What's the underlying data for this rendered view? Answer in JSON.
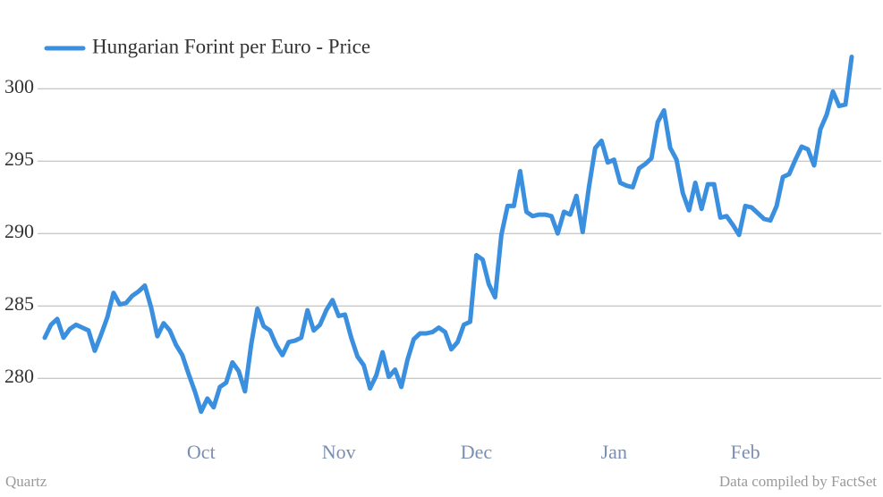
{
  "chart_data": {
    "type": "line",
    "footer_left": "Quartz",
    "footer_right": "Data compiled by FactSet",
    "legend": "top-left",
    "grid": true,
    "categories": [
      null,
      null,
      null,
      null,
      null,
      null,
      null,
      null,
      null,
      null,
      null,
      null,
      null,
      null,
      null,
      null,
      null,
      null,
      null,
      null,
      null,
      null,
      null,
      null,
      null,
      "Oct",
      null,
      null,
      null,
      null,
      null,
      null,
      null,
      null,
      null,
      null,
      null,
      null,
      null,
      null,
      null,
      null,
      null,
      null,
      null,
      null,
      null,
      "Nov",
      null,
      null,
      null,
      null,
      null,
      null,
      null,
      null,
      null,
      null,
      null,
      null,
      null,
      null,
      null,
      null,
      null,
      null,
      null,
      null,
      null,
      "Dec",
      null,
      null,
      null,
      null,
      null,
      null,
      null,
      null,
      null,
      null,
      null,
      null,
      null,
      null,
      null,
      null,
      null,
      null,
      null,
      null,
      null,
      "Jan",
      null,
      null,
      null,
      null,
      null,
      null,
      null,
      null,
      null,
      null,
      null,
      null,
      null,
      null,
      null,
      null,
      null,
      null,
      null,
      null,
      "Feb",
      null,
      null,
      null,
      null,
      null,
      null,
      null,
      null,
      null,
      null,
      null,
      null,
      null,
      null,
      null,
      null,
      null
    ],
    "series": [
      {
        "name": "Hungarian Forint per Euro - Price",
        "color": "#3a8fdf",
        "values": [
          282.8,
          283.7,
          284.1,
          282.8,
          283.4,
          283.7,
          283.5,
          283.3,
          281.9,
          283.0,
          284.2,
          285.9,
          285.1,
          285.2,
          285.7,
          286.0,
          286.4,
          284.9,
          282.9,
          283.8,
          283.3,
          282.3,
          281.6,
          280.3,
          279.1,
          277.7,
          278.6,
          278.0,
          279.4,
          279.7,
          281.1,
          280.5,
          279.1,
          282.3,
          284.8,
          283.6,
          283.3,
          282.3,
          281.6,
          282.5,
          282.6,
          282.8,
          284.7,
          283.3,
          283.7,
          284.7,
          285.4,
          284.3,
          284.4,
          282.8,
          281.5,
          280.9,
          279.3,
          280.2,
          281.8,
          280.1,
          280.6,
          279.4,
          281.3,
          282.7,
          283.1,
          283.1,
          283.2,
          283.5,
          283.2,
          282.0,
          282.5,
          283.7,
          283.9,
          288.5,
          288.2,
          286.5,
          285.6,
          289.9,
          291.9,
          291.9,
          294.3,
          291.5,
          291.2,
          291.3,
          291.3,
          291.2,
          290.0,
          291.5,
          291.3,
          292.6,
          290.1,
          293.2,
          295.9,
          296.4,
          294.9,
          295.1,
          293.5,
          293.3,
          293.2,
          294.5,
          294.8,
          295.2,
          297.7,
          298.5,
          295.9,
          295.1,
          292.8,
          291.6,
          293.5,
          291.7,
          293.4,
          293.4,
          291.1,
          291.2,
          290.6,
          289.9,
          291.9,
          291.8,
          291.4,
          291.0,
          290.9,
          291.9,
          293.9,
          294.1,
          295.1,
          296.0,
          295.8,
          294.7,
          297.2,
          298.2,
          299.8,
          298.8,
          298.9,
          302.2
        ]
      }
    ],
    "ylim": [
      276,
      303
    ],
    "yticks": [
      280,
      285,
      290,
      295,
      300
    ]
  }
}
